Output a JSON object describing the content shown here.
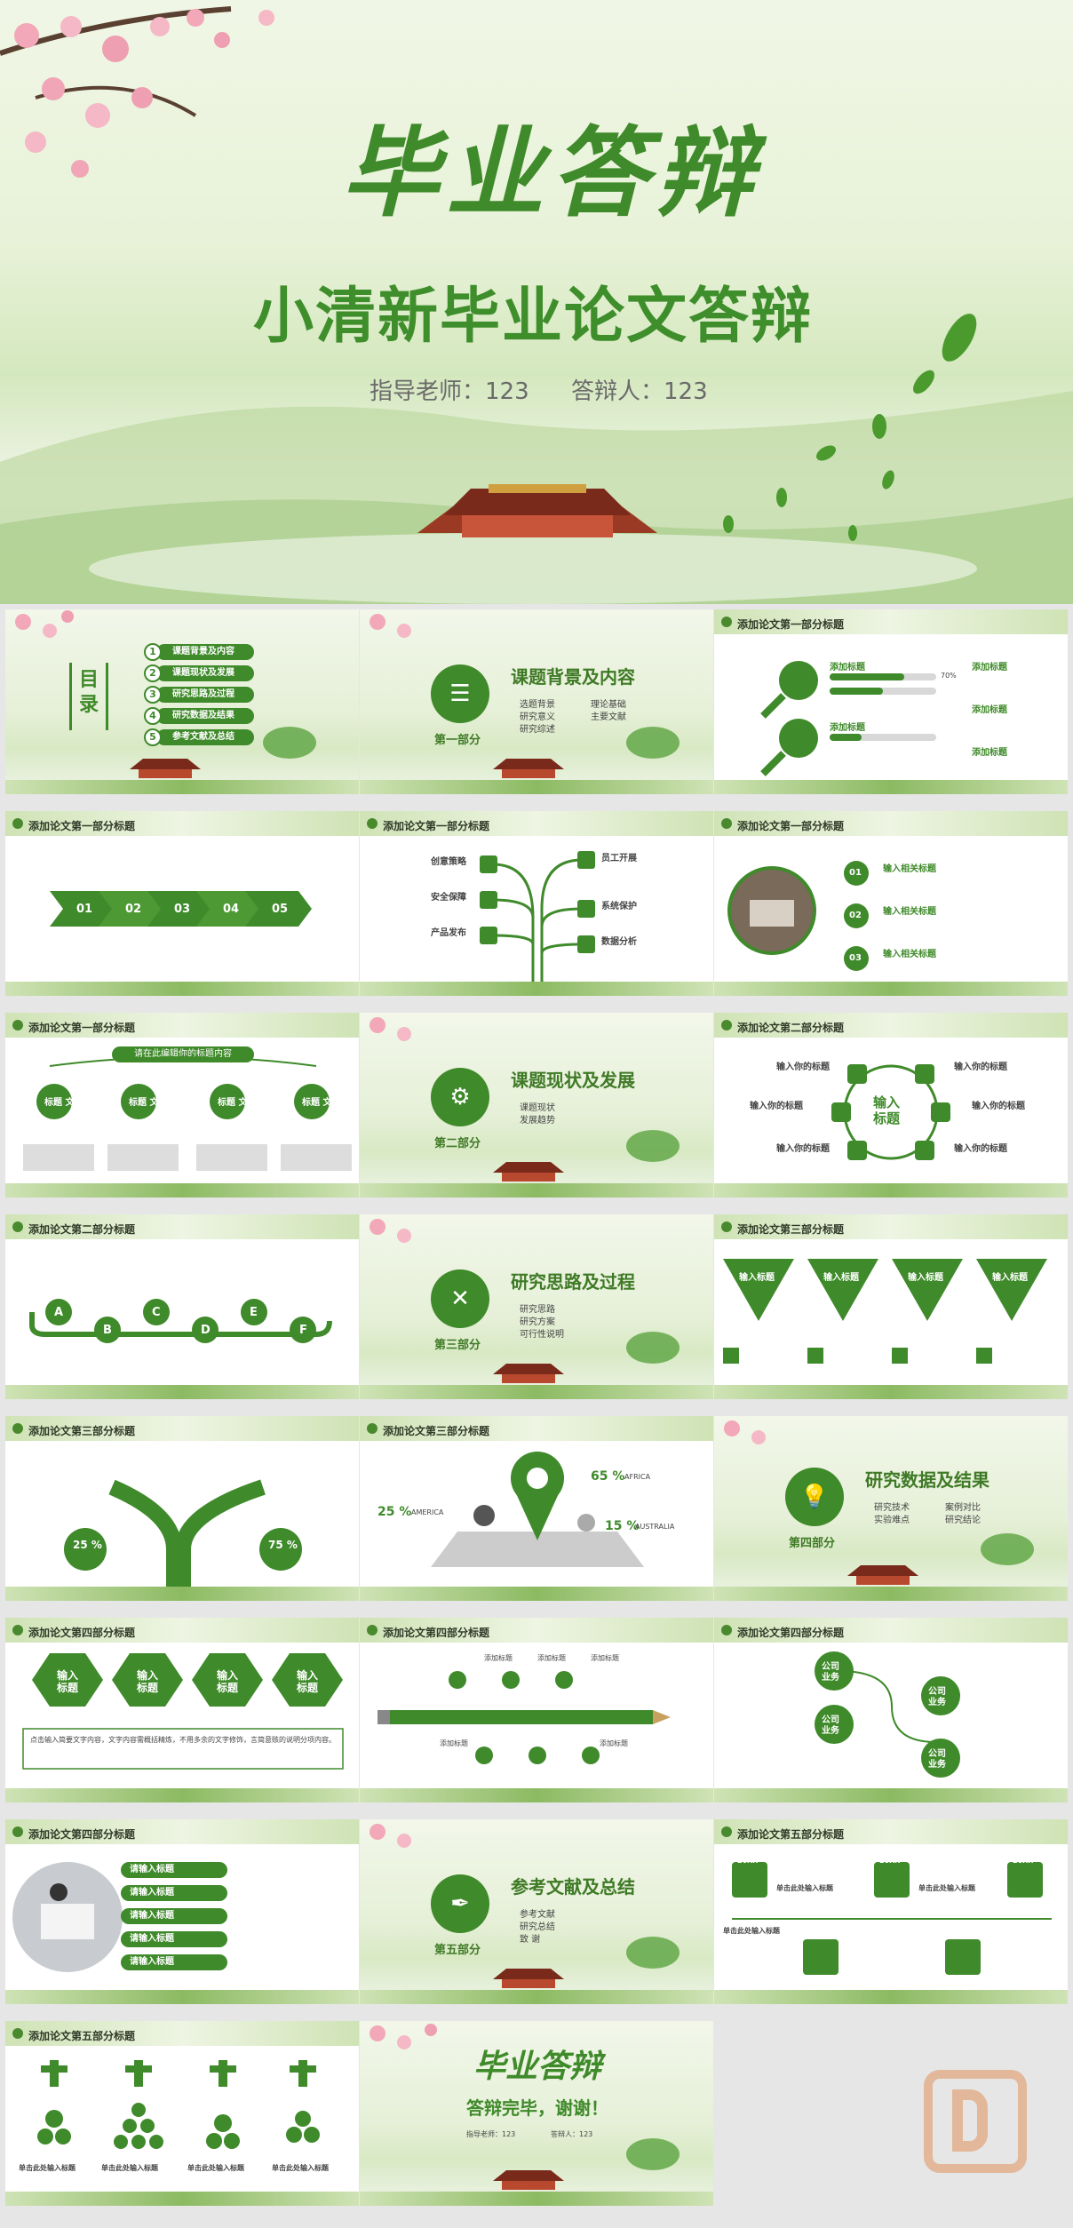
{
  "hero": {
    "title": "毕业答辩",
    "subtitle": "小清新毕业论文答辩",
    "teacher": "指导老师：123",
    "defender": "答辩人：123"
  },
  "toc": {
    "label": "目录",
    "items": [
      "课题背景及内容",
      "课题现状及发展",
      "研究思路及过程",
      "研究数据及结果",
      "参考文献及总结"
    ],
    "nums": [
      "1",
      "2",
      "3",
      "4",
      "5"
    ]
  },
  "part1": {
    "title": "课题背景及内容",
    "label": "第一部分",
    "bullets": [
      "选题背景",
      "研究意义",
      "研究综述",
      "理论基础",
      "主要文献"
    ]
  },
  "part2": {
    "title": "课题现状及发展",
    "label": "第二部分",
    "bullets": [
      "课题现状",
      "发展趋势"
    ]
  },
  "part3": {
    "title": "研究思路及过程",
    "label": "第三部分",
    "bullets": [
      "研究思路",
      "研究方案",
      "可行性说明"
    ]
  },
  "part4": {
    "title": "研究数据及结果",
    "label": "第四部分",
    "bullets": [
      "研究技术",
      "实验难点",
      "案例对比",
      "研究结论"
    ]
  },
  "part5": {
    "title": "参考文献及总结",
    "label": "第五部分",
    "bullets": [
      "参考文献",
      "研究总结",
      "致 谢"
    ]
  },
  "headers": {
    "s1": "添加论文第一部分标题",
    "s2": "添加论文第二部分标题",
    "s3": "添加论文第三部分标题",
    "s4": "添加论文第四部分标题",
    "s5": "添加论文第五部分标题"
  },
  "slide3": {
    "items": [
      "添加标题",
      "添加标题",
      "添加标题"
    ],
    "pct": [
      "70%",
      "50%",
      "30%"
    ]
  },
  "slide4": {
    "steps": [
      "01",
      "02",
      "03",
      "04",
      "05"
    ]
  },
  "slide5": {
    "items": [
      "创意策略",
      "员工开展",
      "安全保障",
      "系统保护",
      "产品发布",
      "数据分析"
    ]
  },
  "slide6": {
    "nums": [
      "01",
      "02",
      "03"
    ],
    "items": [
      "输入相关标题",
      "输入相关标题",
      "输入相关标题"
    ]
  },
  "slide7": {
    "banner": "请在此编辑你的标题内容",
    "tags": [
      "标题\n文本",
      "标题\n文本",
      "标题\n文本",
      "标题\n文本"
    ]
  },
  "slide9": {
    "center": "输入\n标题",
    "items": [
      "输入你的标题",
      "输入你的标题",
      "输入你的标题",
      "输入你的标题",
      "输入你的标题",
      "输入你的标题"
    ]
  },
  "slide10": {
    "letters": [
      "A",
      "B",
      "C",
      "D",
      "E",
      "F"
    ]
  },
  "slide12": {
    "items": [
      "输入标题",
      "输入标题",
      "输入标题",
      "输入标题"
    ]
  },
  "slide13": {
    "left": "25 %",
    "right": "75 %"
  },
  "slide14": {
    "a": "25 %",
    "b": "65 %",
    "c": "15 %",
    "a_l": "AMERICA",
    "b_l": "AFRICA",
    "c_l": "AUSTRALIA"
  },
  "slide16": {
    "items": [
      "输入\n标题",
      "输入\n标题",
      "输入\n标题",
      "输入\n标题"
    ]
  },
  "slide17": {
    "items": [
      "添加标题",
      "添加标题",
      "添加标题",
      "添加标题",
      "添加标题"
    ]
  },
  "slide18": {
    "items": [
      "公司\n业务",
      "公司\n业务",
      "公司\n业务",
      "公司\n业务"
    ]
  },
  "slide19": {
    "items": [
      "请输入标题",
      "请输入标题",
      "请输入标题",
      "请输入标题",
      "请输入标题"
    ]
  },
  "slide21": {
    "years": [
      "20XX",
      "20XX",
      "20XX",
      "20XX",
      "20XX",
      "20XX"
    ],
    "label": "单击此处输入标题"
  },
  "slide22": {
    "label": "单击此处输入标题"
  },
  "ending": {
    "title": "毕业答辩",
    "thanks": "答辩完毕，谢谢！",
    "teacher": "指导老师：123",
    "defender": "答辩人：123"
  },
  "placeholder": "点击输入简要文字内容，文字内容需概括精炼，不用多余的文字修饰，言简意赅的说明分项内容。"
}
